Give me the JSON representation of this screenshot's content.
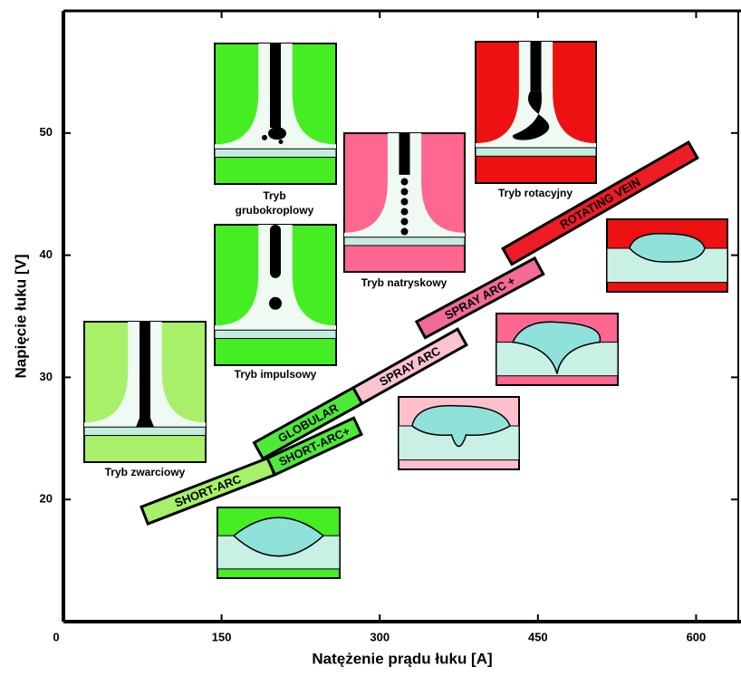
{
  "chart_data": {
    "type": "band",
    "xlabel": "Natężenie prądu łuku [A]",
    "ylabel": "Napięcie łuku [V]",
    "xlim": [
      0,
      640
    ],
    "ylim": [
      10,
      60
    ],
    "xticks": [
      0,
      150,
      300,
      450,
      600
    ],
    "yticks": [
      20,
      30,
      40,
      50
    ],
    "series": [
      {
        "name": "SHORT-ARC",
        "color": "#a6f06a",
        "x": [
          77,
          197
        ],
        "values": [
          18.7,
          22.7
        ]
      },
      {
        "name": "SHORT-ARC+",
        "color": "#4eea3a",
        "x": [
          197,
          279
        ],
        "values": [
          22.7,
          26.0
        ]
      },
      {
        "name": "GLOBULAR",
        "color": "#4eea3a",
        "x": [
          185,
          279
        ],
        "values": [
          24.0,
          28.5
        ]
      },
      {
        "name": "SPRAY ARC",
        "color": "#f9c3cf",
        "x": [
          279,
          378
        ],
        "values": [
          28.5,
          33.3
        ]
      },
      {
        "name": "SPRAY ARC +",
        "color": "#f26a96",
        "x": [
          339,
          451
        ],
        "values": [
          33.9,
          39.1
        ]
      },
      {
        "name": "ROTATING  VEIN",
        "color": "#ee1c24",
        "x": [
          421,
          597
        ],
        "values": [
          39.9,
          48.6
        ]
      }
    ]
  },
  "captions": [
    "Tryb zwarciowy",
    "Tryb impulsowy",
    "Tryb grubokroplowy",
    "Tryb natryskowy",
    "Tryb rotacyjny"
  ]
}
